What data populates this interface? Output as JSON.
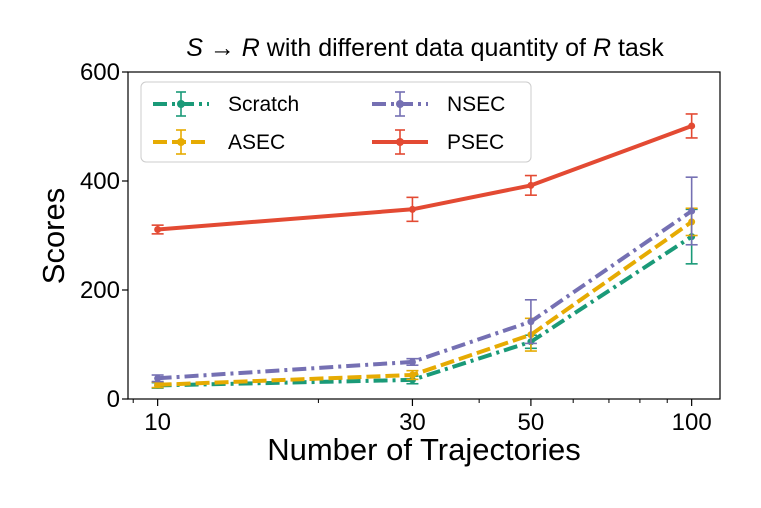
{
  "chart_data": {
    "type": "line",
    "title": {
      "prefix": "S",
      "arrow": "→",
      "mid": "R",
      "text": " with different data quantity of ",
      "italic_var": "R",
      "suffix": " task"
    },
    "xlabel": "Number of Trajectories",
    "ylabel": "Scores",
    "x_scale": "log",
    "x": [
      10,
      30,
      50,
      100
    ],
    "xticks": [
      "10",
      "30",
      "50",
      "100"
    ],
    "xlim": [
      8.8,
      113
    ],
    "ylim": [
      0,
      600
    ],
    "yticks": [
      "0",
      "200",
      "400",
      "600"
    ],
    "legend_position": "upper-left",
    "series": [
      {
        "name": "Scratch",
        "color": "#1a9a78",
        "dash": "dashdot",
        "values": [
          25,
          35,
          105,
          298
        ],
        "errors": [
          5,
          7,
          12,
          50
        ]
      },
      {
        "name": "ASEC",
        "color": "#e6ab02",
        "dash": "dashed",
        "values": [
          26,
          44,
          118,
          325
        ],
        "errors": [
          5,
          8,
          30,
          25
        ]
      },
      {
        "name": "NSEC",
        "color": "#7570b3",
        "dash": "dashdot",
        "values": [
          38,
          68,
          142,
          345
        ],
        "errors": [
          6,
          6,
          40,
          62
        ]
      },
      {
        "name": "PSEC",
        "color": "#e34a33",
        "dash": "solid",
        "values": [
          311,
          348,
          392,
          501
        ],
        "errors": [
          8,
          22,
          18,
          22
        ]
      }
    ]
  }
}
